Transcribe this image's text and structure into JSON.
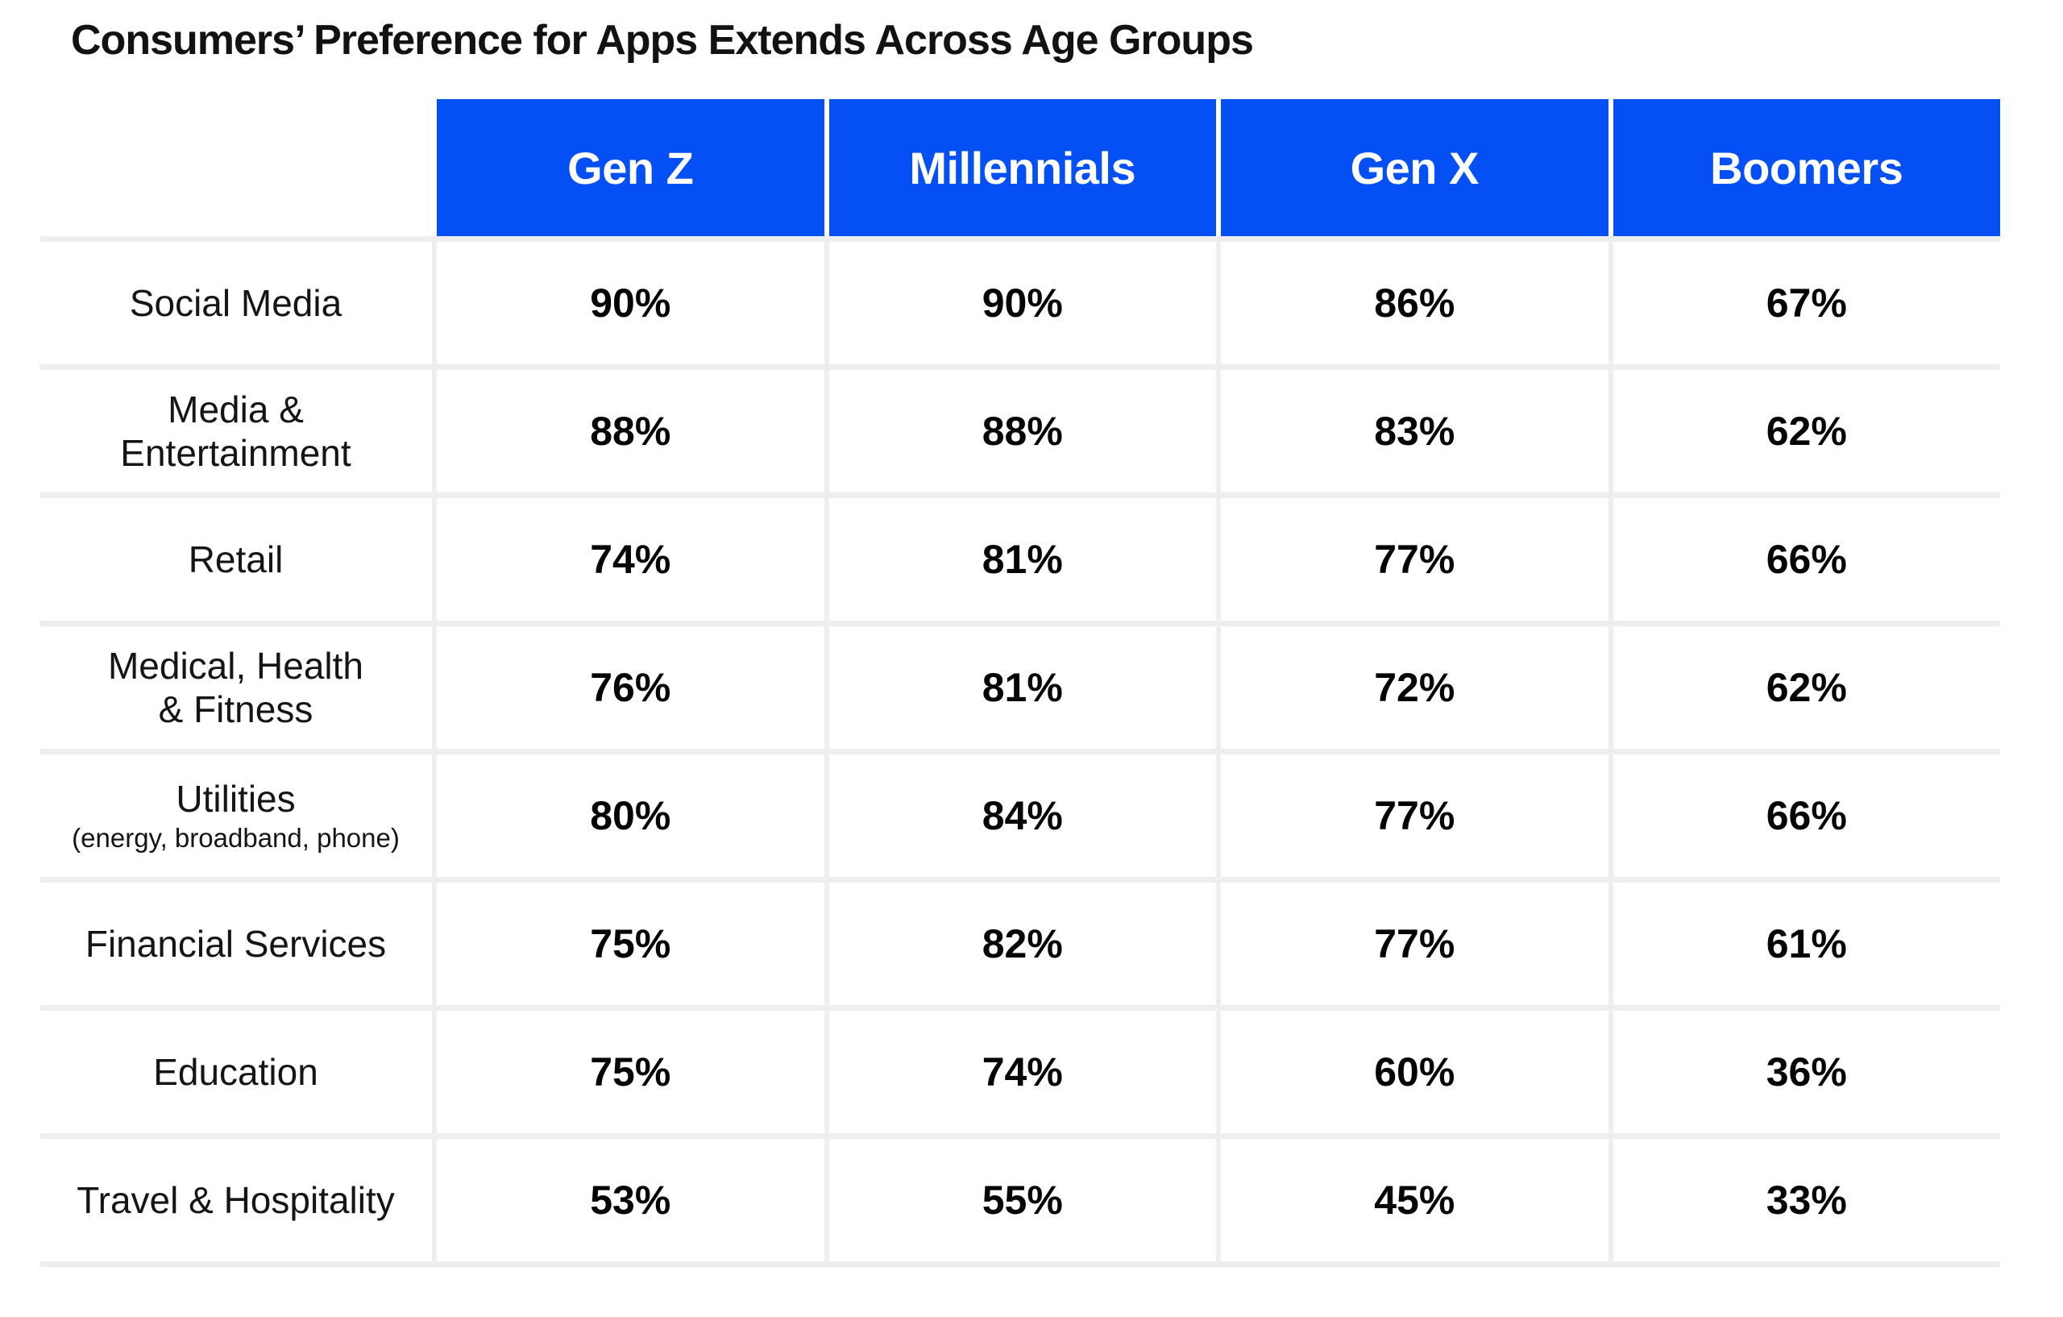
{
  "page": {
    "title": "Consumers’ Preference for Apps Extends Across Age Groups"
  },
  "colors": {
    "header_blue": "#0450F5",
    "header_text": "#ffffff",
    "separator": "#EDEEF0",
    "body_text": "#151515",
    "value_text": "#050505",
    "title_text": "#121212"
  },
  "table": {
    "columns": [
      "Gen Z",
      "Millennials",
      "Gen X",
      "Boomers"
    ],
    "rows": [
      {
        "label_lines": [
          "Social Media"
        ],
        "sublabel": "",
        "values": [
          "90%",
          "90%",
          "86%",
          "67%"
        ]
      },
      {
        "label_lines": [
          "Media &",
          "Entertainment"
        ],
        "sublabel": "",
        "values": [
          "88%",
          "88%",
          "83%",
          "62%"
        ]
      },
      {
        "label_lines": [
          "Retail"
        ],
        "sublabel": "",
        "values": [
          "74%",
          "81%",
          "77%",
          "66%"
        ]
      },
      {
        "label_lines": [
          "Medical, Health",
          "& Fitness"
        ],
        "sublabel": "",
        "values": [
          "76%",
          "81%",
          "72%",
          "62%"
        ]
      },
      {
        "label_lines": [
          "Utilities"
        ],
        "sublabel": "(energy, broadband, phone)",
        "values": [
          "80%",
          "84%",
          "77%",
          "66%"
        ]
      },
      {
        "label_lines": [
          "Financial Services"
        ],
        "sublabel": "",
        "values": [
          "75%",
          "82%",
          "77%",
          "61%"
        ]
      },
      {
        "label_lines": [
          "Education"
        ],
        "sublabel": "",
        "values": [
          "75%",
          "74%",
          "60%",
          "36%"
        ]
      },
      {
        "label_lines": [
          "Travel & Hospitality"
        ],
        "sublabel": "",
        "values": [
          "53%",
          "55%",
          "45%",
          "33%"
        ]
      }
    ]
  },
  "chart_data": {
    "type": "table",
    "title": "Consumers’ Preference for Apps Extends Across Age Groups",
    "unit": "%",
    "categories": [
      "Social Media",
      "Media & Entertainment",
      "Retail",
      "Medical, Health & Fitness",
      "Utilities (energy, broadband, phone)",
      "Financial Services",
      "Education",
      "Travel & Hospitality"
    ],
    "series": [
      {
        "name": "Gen Z",
        "values": [
          90,
          88,
          74,
          76,
          80,
          75,
          75,
          53
        ]
      },
      {
        "name": "Millennials",
        "values": [
          90,
          88,
          81,
          81,
          84,
          82,
          74,
          55
        ]
      },
      {
        "name": "Gen X",
        "values": [
          86,
          83,
          77,
          72,
          77,
          77,
          60,
          45
        ]
      },
      {
        "name": "Boomers",
        "values": [
          67,
          62,
          66,
          62,
          66,
          61,
          36,
          33
        ]
      }
    ]
  }
}
